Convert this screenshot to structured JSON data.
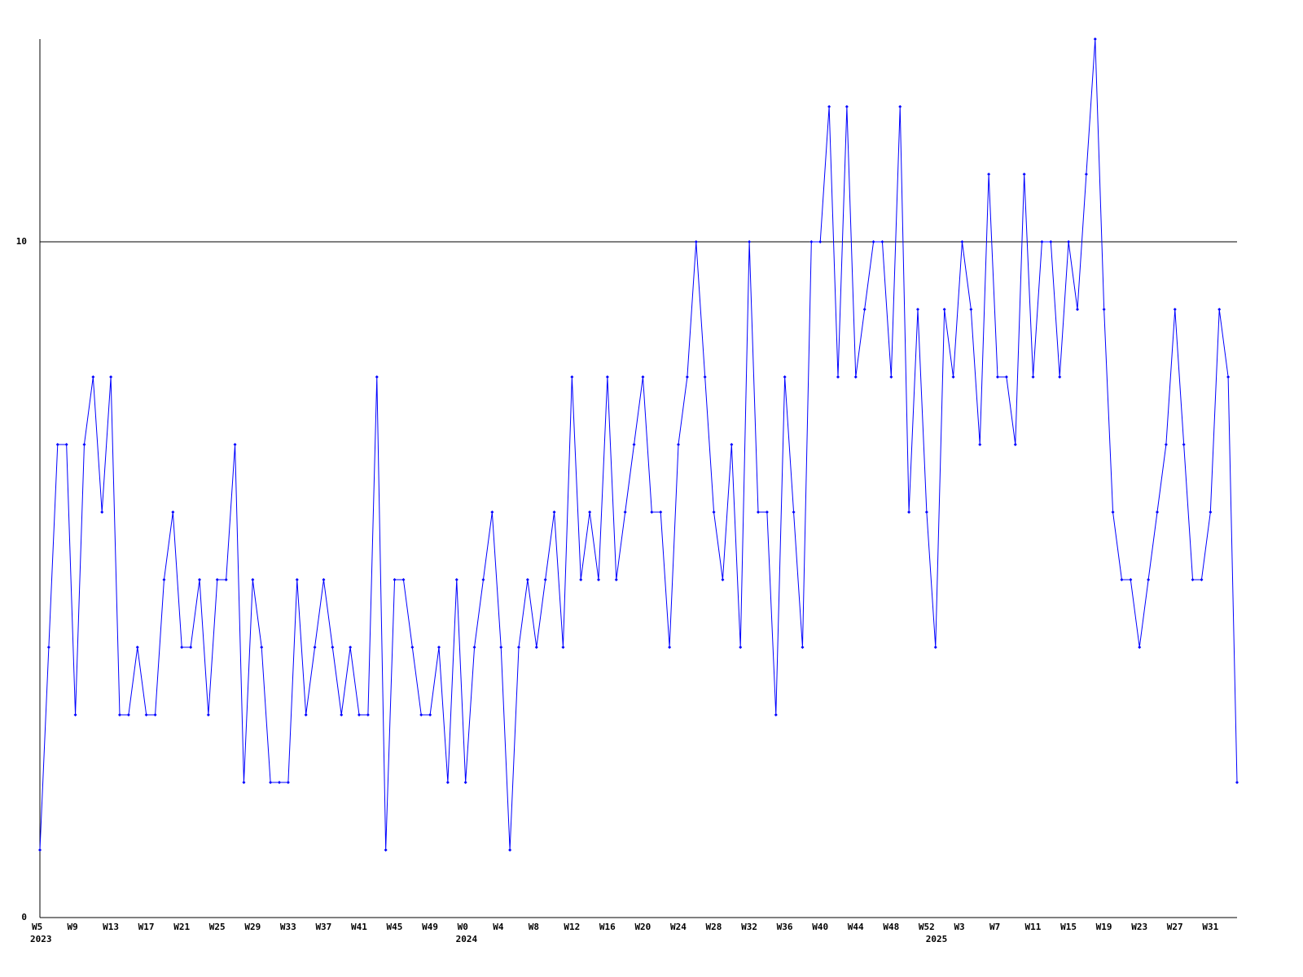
{
  "chart_data": {
    "type": "line",
    "color": "#0000ff",
    "ylim": [
      0,
      13
    ],
    "yticks": [
      0,
      10
    ],
    "grid": true,
    "categories": [
      "W5",
      null,
      null,
      null,
      "W9",
      null,
      null,
      null,
      "W13",
      null,
      null,
      null,
      "W17",
      null,
      null,
      null,
      "W21",
      null,
      null,
      null,
      "W25",
      null,
      null,
      null,
      "W29",
      null,
      null,
      null,
      "W33",
      null,
      null,
      null,
      "W37",
      null,
      null,
      null,
      "W41",
      null,
      null,
      null,
      "W45",
      null,
      null,
      null,
      "W49",
      null,
      null,
      null,
      "W0",
      null,
      null,
      null,
      "W4",
      null,
      null,
      null,
      "W8",
      null,
      null,
      null,
      "W12",
      null,
      null,
      null,
      "W16",
      null,
      null,
      null,
      "W20",
      null,
      null,
      null,
      "W24",
      null,
      null,
      null,
      "W28",
      null,
      null,
      null,
      "W32",
      null,
      null,
      null,
      "W36",
      null,
      null,
      null,
      "W40",
      null,
      null,
      null,
      "W44",
      null,
      null,
      null,
      "W48",
      null,
      null,
      null,
      "W52",
      null,
      null,
      null,
      "W3",
      null,
      null,
      null,
      "W7",
      null,
      null,
      null,
      "W11",
      null,
      null,
      null,
      "W15",
      null,
      null,
      null,
      "W19",
      null,
      null,
      null,
      "W23",
      null,
      null,
      null,
      "W27",
      null,
      null,
      null,
      "W31",
      null,
      null,
      null
    ],
    "years": [
      "2023",
      null,
      null,
      null,
      null,
      null,
      null,
      null,
      null,
      null,
      null,
      null,
      null,
      null,
      null,
      null,
      null,
      null,
      null,
      null,
      null,
      null,
      null,
      null,
      null,
      null,
      null,
      null,
      null,
      null,
      null,
      null,
      null,
      null,
      null,
      null,
      null,
      null,
      null,
      null,
      null,
      null,
      null,
      null,
      null,
      null,
      null,
      null,
      "2024",
      null,
      null,
      null,
      null,
      null,
      null,
      null,
      null,
      null,
      null,
      null,
      null,
      null,
      null,
      null,
      null,
      null,
      null,
      null,
      null,
      null,
      null,
      null,
      null,
      null,
      null,
      null,
      null,
      null,
      null,
      null,
      null,
      null,
      null,
      null,
      null,
      null,
      null,
      null,
      null,
      null,
      null,
      null,
      null,
      null,
      null,
      null,
      null,
      null,
      null,
      null,
      null,
      "2025",
      null,
      null,
      null,
      null,
      null,
      null,
      null,
      null,
      null,
      null,
      null,
      null,
      null,
      null,
      null,
      null,
      null,
      null,
      null,
      null,
      null,
      null,
      null,
      null,
      null,
      null,
      null,
      null,
      null,
      null,
      null,
      null,
      null,
      null
    ],
    "values": [
      1,
      4,
      7,
      7,
      3,
      7,
      8,
      6,
      8,
      3,
      3,
      4,
      3,
      3,
      5,
      6,
      4,
      4,
      5,
      3,
      5,
      5,
      7,
      2,
      5,
      4,
      2,
      2,
      2,
      5,
      3,
      4,
      5,
      4,
      3,
      4,
      3,
      3,
      8,
      1,
      5,
      5,
      4,
      3,
      3,
      4,
      2,
      5,
      2,
      4,
      5,
      6,
      4,
      1,
      4,
      5,
      4,
      5,
      6,
      4,
      8,
      5,
      6,
      5,
      8,
      5,
      6,
      7,
      8,
      6,
      6,
      4,
      7,
      8,
      10,
      8,
      6,
      5,
      7,
      4,
      10,
      6,
      6,
      3,
      8,
      6,
      4,
      10,
      10,
      12,
      8,
      12,
      8,
      9,
      10,
      10,
      8,
      12,
      6,
      9,
      6,
      4,
      9,
      8,
      10,
      9,
      7,
      11,
      8,
      8,
      7,
      11,
      8,
      10,
      10,
      8,
      10,
      9,
      11,
      13,
      9,
      6,
      5,
      5,
      4,
      5,
      6,
      7,
      9,
      7,
      5,
      5,
      6,
      9,
      8,
      2
    ]
  }
}
